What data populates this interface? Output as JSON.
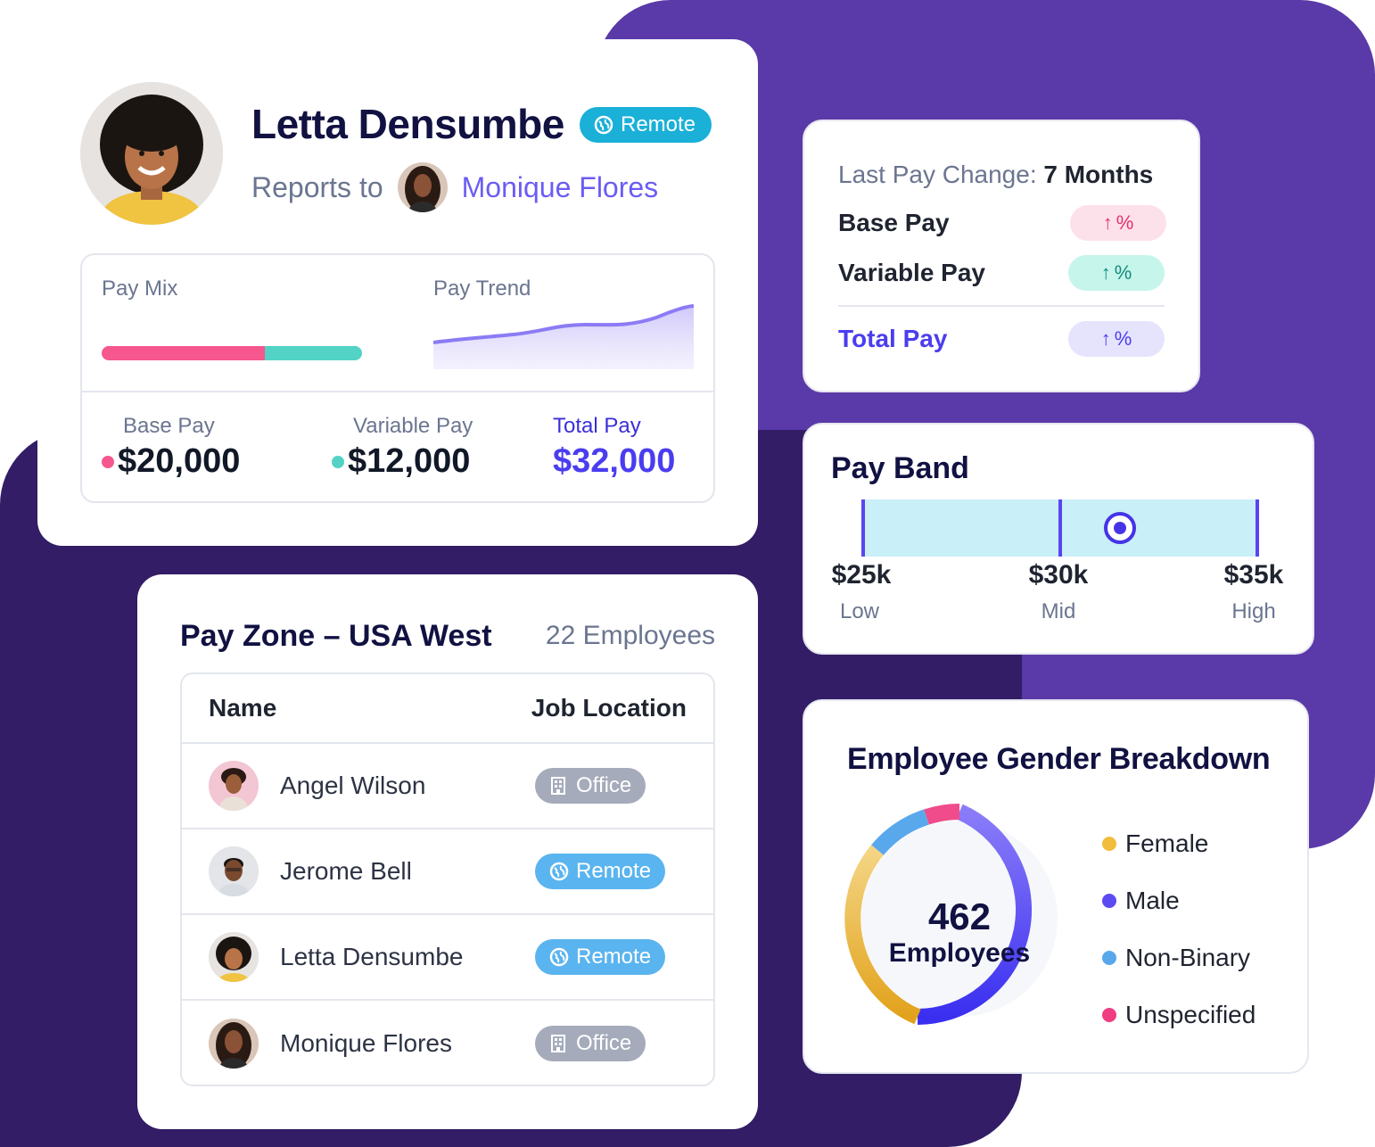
{
  "profile": {
    "name": "Letta Densumbe",
    "status": "Remote",
    "reports_label": "Reports to",
    "manager": "Monique Flores",
    "pay_mix_label": "Pay Mix",
    "pay_trend_label": "Pay Trend",
    "pay_mix": {
      "base": 20000,
      "variable": 12000
    },
    "base_pay_label": "Base Pay",
    "base_pay": "$20,000",
    "variable_pay_label": "Variable Pay",
    "variable_pay": "$12,000",
    "total_pay_label": "Total Pay",
    "total_pay": "$32,000"
  },
  "last_pay": {
    "label": "Last Pay Change:",
    "value": "7 Months",
    "rows": [
      {
        "label": "Base Pay",
        "chip": "%"
      },
      {
        "label": "Variable Pay",
        "chip": "%"
      },
      {
        "label": "Total Pay",
        "chip": "%"
      }
    ]
  },
  "pay_band": {
    "title": "Pay Band",
    "low": "$25k",
    "low_label": "Low",
    "mid": "$30k",
    "mid_label": "Mid",
    "high": "$35k",
    "high_label": "High"
  },
  "pay_zone": {
    "title": "Pay Zone – USA West",
    "count": "22 Employees",
    "col_name": "Name",
    "col_location": "Job Location",
    "rows": [
      {
        "name": "Angel Wilson",
        "location": "Office"
      },
      {
        "name": "Jerome Bell",
        "location": "Remote"
      },
      {
        "name": "Letta Densumbe",
        "location": "Remote"
      },
      {
        "name": "Monique Flores",
        "location": "Office"
      }
    ]
  },
  "gender": {
    "title": "Employee Gender Breakdown",
    "total": "462",
    "total_label": "Employees",
    "legend": [
      "Female",
      "Male",
      "Non-Binary",
      "Unspecified"
    ]
  },
  "colors": {
    "purple": "#5a39a8",
    "dark": "#321d66",
    "accent": "#4a3df0",
    "pink": "#f6578f",
    "teal": "#52d3c5"
  }
}
